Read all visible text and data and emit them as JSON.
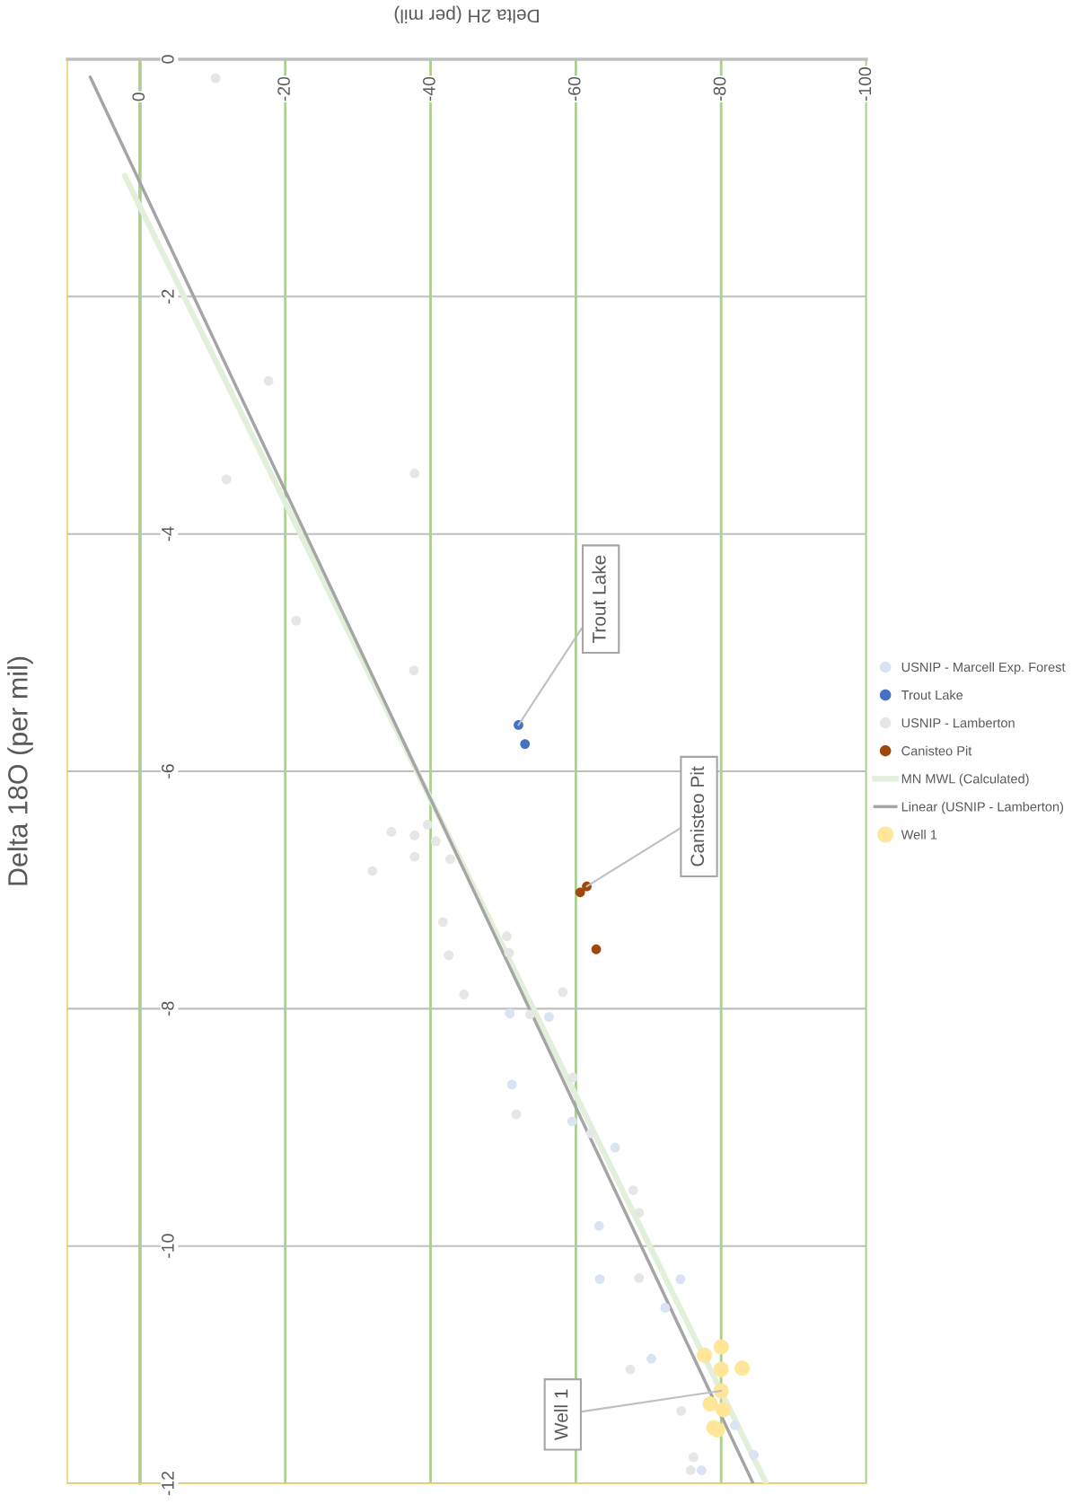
{
  "chart_data": {
    "type": "scatter",
    "xlabel": "Delta 2H (per mil)",
    "ylabel": "Delta 18O (per mil)",
    "xlim": [
      10,
      -100
    ],
    "xticks": [
      0,
      -20,
      -40,
      -60,
      -80,
      -100
    ],
    "ylim": [
      -12,
      0
    ],
    "yticks": [
      0,
      -2,
      -4,
      -6,
      -8,
      -10,
      -12
    ],
    "grid": true,
    "legend": "right",
    "marker": "circle",
    "series": [
      {
        "name": "USNIP - Marcell Exp. Forest",
        "color": "#dae3f3",
        "x": [
          -50.9,
          -56.3,
          -51.2,
          -59.5,
          -65.4,
          -63.2,
          -63.3,
          -72.3,
          -74.4,
          -70.4,
          -81.9,
          -77.3,
          -84.5
        ],
        "values": [
          -8.04,
          -8.07,
          -8.64,
          -8.95,
          -9.17,
          -9.83,
          -10.28,
          -10.52,
          -10.28,
          -10.95,
          -11.51,
          -11.89,
          -11.76
        ]
      },
      {
        "name": "Trout Lake",
        "color": "#4472c4",
        "x": [
          -52.1,
          -53.0
        ],
        "values": [
          -5.61,
          -5.77
        ]
      },
      {
        "name": "USNIP - Lamberton",
        "color": "#e7e6e6",
        "x": [
          -10.4,
          -17.7,
          -11.9,
          -37.8,
          -21.5,
          -37.7,
          -34.6,
          -39.6,
          -37.8,
          -40.7,
          -42.7,
          -37.8,
          -32.0,
          -41.7,
          -50.5,
          -42.5,
          -50.8,
          -44.6,
          -58.2,
          -53.7,
          -59.6,
          -51.8,
          -62.1,
          -67.9,
          -68.7,
          -68.7,
          -67.5,
          -74.5,
          -76.2,
          -75.8
        ],
        "values": [
          -0.16,
          -2.71,
          -3.54,
          -3.49,
          -4.73,
          -5.15,
          -6.51,
          -6.45,
          -6.54,
          -6.59,
          -6.74,
          -6.72,
          -6.84,
          -7.27,
          -7.39,
          -7.55,
          -7.53,
          -7.88,
          -7.86,
          -8.05,
          -8.58,
          -8.89,
          -9.05,
          -9.53,
          -9.72,
          -10.27,
          -11.04,
          -11.39,
          -11.78,
          -11.89
        ]
      },
      {
        "name": "Canisteo Pit",
        "color": "#9e480e",
        "x": [
          -61.5,
          -60.6,
          -62.8
        ],
        "values": [
          -6.97,
          -7.02,
          -7.5
        ]
      },
      {
        "name": "MN MWL (Calculated)",
        "type": "line",
        "color": "#e2efda",
        "marker": "none",
        "x": [
          2.1,
          -86.2
        ],
        "values": [
          -0.98,
          -12.0
        ]
      },
      {
        "name": "Linear (USNIP - Lamberton)",
        "type": "line",
        "color": "#a5a5a5",
        "marker": "none",
        "x": [
          6.85,
          -84.4
        ],
        "values": [
          -0.15,
          -12.0
        ]
      },
      {
        "name": "Well 1",
        "color": "#ffe699",
        "x": [
          -80.0,
          -77.7,
          -80.0,
          -82.9,
          -80.0,
          -78.5,
          -80.3,
          -79.0,
          -79.5
        ],
        "values": [
          -10.85,
          -10.92,
          -11.04,
          -11.03,
          -11.22,
          -11.33,
          -11.38,
          -11.53,
          -11.55
        ]
      }
    ],
    "annotations": [
      {
        "text": "Trout Lake",
        "x": -52.1,
        "y": -5.61
      },
      {
        "text": "Canisteo Pit",
        "x": -61.5,
        "y": -6.97
      },
      {
        "text": "Well 1",
        "x": -80.0,
        "y": -11.22
      }
    ]
  }
}
